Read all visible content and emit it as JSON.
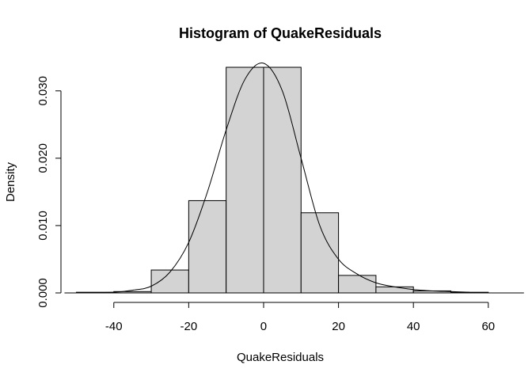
{
  "chart_data": {
    "type": "bar",
    "subtype": "histogram",
    "title": "Histogram of QuakeResiduals",
    "xlabel": "QuakeResiduals",
    "ylabel": "Density",
    "xlim": [
      -52,
      63
    ],
    "ylim": [
      0,
      0.0335
    ],
    "x_ticks": [
      -40,
      -20,
      0,
      20,
      40,
      60
    ],
    "x_tick_labels": [
      "-40",
      "-20",
      "0",
      "20",
      "40",
      "60"
    ],
    "y_ticks": [
      0,
      0.01,
      0.02,
      0.03
    ],
    "y_tick_labels": [
      "0.000",
      "0.010",
      "0.020",
      "0.030"
    ],
    "bins": [
      {
        "x0": -50,
        "x1": -40,
        "density": 0.0001
      },
      {
        "x0": -40,
        "x1": -30,
        "density": 0.0002
      },
      {
        "x0": -30,
        "x1": -20,
        "density": 0.0034
      },
      {
        "x0": -20,
        "x1": -10,
        "density": 0.0137
      },
      {
        "x0": -10,
        "x1": 0,
        "density": 0.0335
      },
      {
        "x0": 0,
        "x1": 10,
        "density": 0.0335
      },
      {
        "x0": 10,
        "x1": 20,
        "density": 0.0119
      },
      {
        "x0": 20,
        "x1": 30,
        "density": 0.0026
      },
      {
        "x0": 30,
        "x1": 40,
        "density": 0.0009
      },
      {
        "x0": 40,
        "x1": 50,
        "density": 0.0003
      },
      {
        "x0": 50,
        "x1": 60,
        "density": 0.0001
      }
    ],
    "density_curve": {
      "x": [
        -50,
        -40,
        -35,
        -30,
        -25,
        -20,
        -15,
        -10,
        -5,
        0,
        5,
        10,
        15,
        20,
        25,
        30,
        35,
        40,
        45,
        50,
        55
      ],
      "y": [
        0.0,
        0.0001,
        0.0004,
        0.001,
        0.0031,
        0.0075,
        0.015,
        0.0242,
        0.0317,
        0.0341,
        0.03,
        0.02,
        0.01,
        0.005,
        0.0028,
        0.0015,
        0.0009,
        0.0005,
        0.0003,
        0.0002,
        0.0001
      ]
    },
    "bar_fill": "#d3d3d3",
    "line_color": "#000000",
    "grid": false
  }
}
